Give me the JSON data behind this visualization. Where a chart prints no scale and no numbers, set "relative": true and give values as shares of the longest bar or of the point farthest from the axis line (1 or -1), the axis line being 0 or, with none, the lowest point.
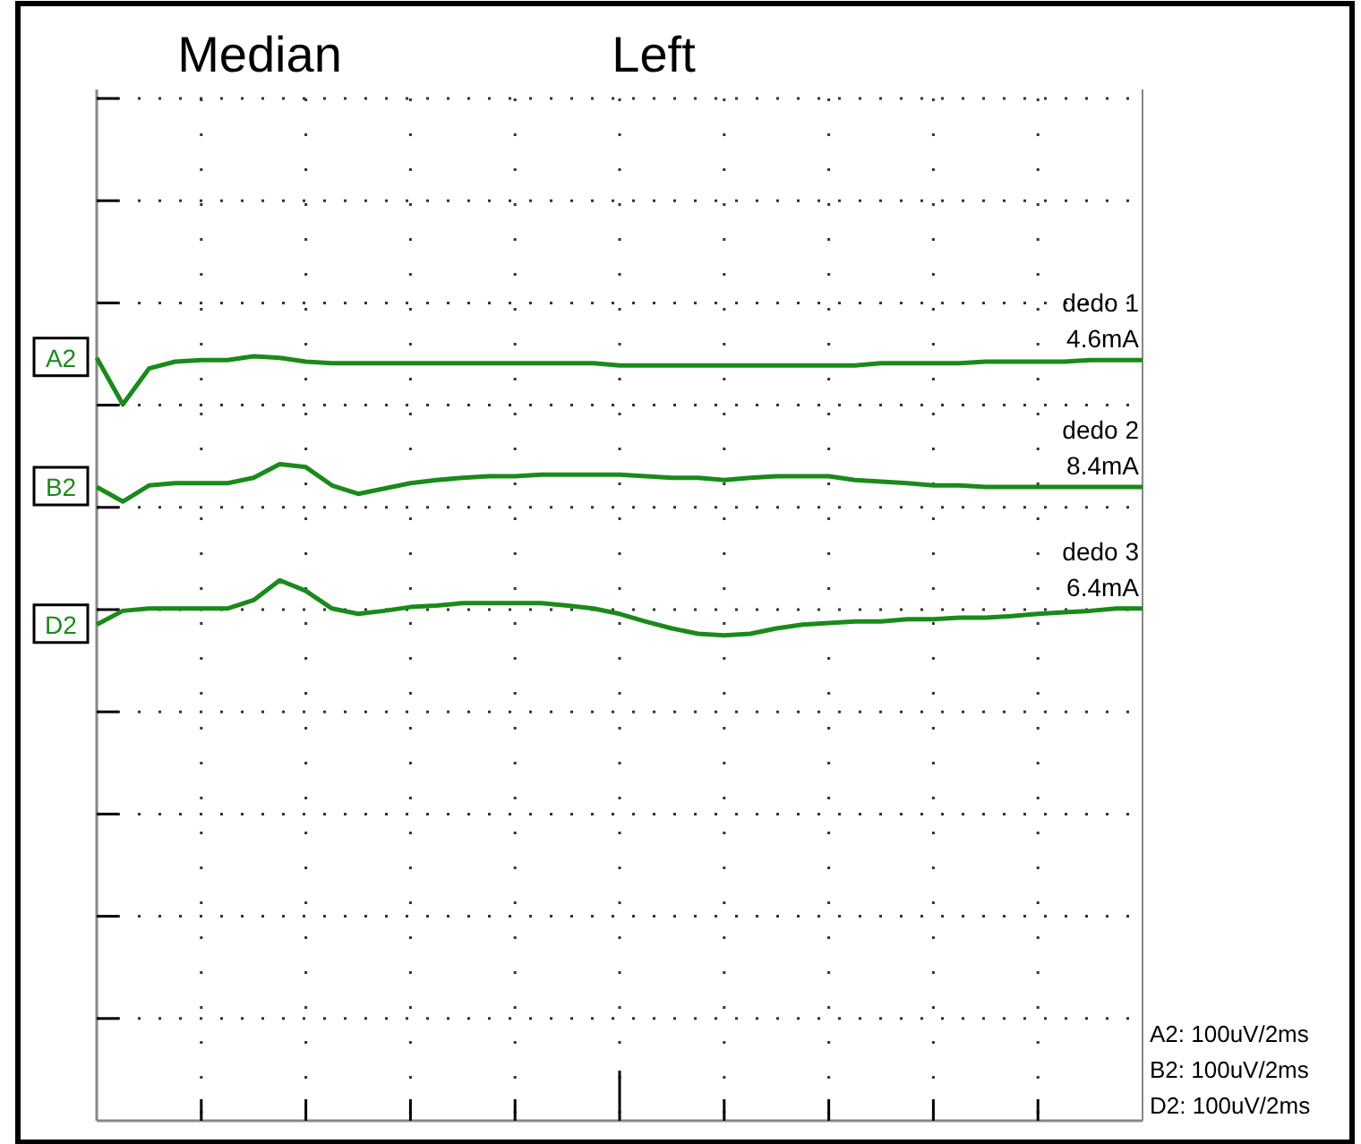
{
  "chart_data": {
    "type": "line",
    "title": "Median",
    "subtitle": "Left",
    "relative": true,
    "grid": true,
    "legend": "left",
    "marker": "none",
    "line_style": "solid",
    "categories": [
      null,
      null,
      null,
      null,
      null,
      null,
      null,
      null,
      null,
      null,
      null,
      null,
      null,
      null,
      null,
      null,
      null,
      null,
      null,
      null,
      null,
      null,
      null,
      null,
      null,
      null,
      null,
      null,
      null,
      null,
      null,
      null,
      null,
      null,
      null,
      null,
      null,
      null,
      null,
      null,
      null
    ],
    "series": [
      {
        "name": "A2",
        "color": "#1a8a1a",
        "values": [
          0.998,
          0.937,
          0.984,
          0.993,
          0.995,
          0.995,
          1,
          0.998,
          0.993,
          0.991,
          0.991,
          0.991,
          0.991,
          0.991,
          0.991,
          0.991,
          0.991,
          0.991,
          0.991,
          0.991,
          0.988,
          0.988,
          0.988,
          0.988,
          0.988,
          0.988,
          0.988,
          0.988,
          0.988,
          0.988,
          0.991,
          0.991,
          0.991,
          0.991,
          0.993,
          0.993,
          0.993,
          0.993,
          0.995,
          0.995,
          0.995
        ]
      },
      {
        "name": "B2",
        "color": "#1a8a1a",
        "values": [
          0.829,
          0.81,
          0.831,
          0.834,
          0.834,
          0.834,
          0.841,
          0.859,
          0.855,
          0.831,
          0.82,
          0.827,
          0.834,
          0.838,
          0.841,
          0.843,
          0.843,
          0.845,
          0.845,
          0.845,
          0.845,
          0.843,
          0.841,
          0.841,
          0.838,
          0.841,
          0.843,
          0.843,
          0.843,
          0.838,
          0.836,
          0.834,
          0.831,
          0.831,
          0.829,
          0.829,
          0.829,
          0.829,
          0.829,
          0.829,
          0.829
        ]
      },
      {
        "name": "D2",
        "color": "#1a8a1a",
        "values": [
          0.649,
          0.667,
          0.67,
          0.67,
          0.67,
          0.67,
          0.681,
          0.707,
          0.693,
          0.67,
          0.663,
          0.667,
          0.672,
          0.674,
          0.677,
          0.677,
          0.677,
          0.677,
          0.674,
          0.67,
          0.663,
          0.653,
          0.644,
          0.637,
          0.635,
          0.637,
          0.644,
          0.649,
          0.651,
          0.653,
          0.653,
          0.656,
          0.656,
          0.658,
          0.658,
          0.66,
          0.663,
          0.665,
          0.667,
          0.67,
          0.67
        ]
      }
    ],
    "annotations": [
      "dedo 1",
      "4.6mA",
      "dedo 2",
      "8.4mA",
      "dedo 3",
      "6.4mA",
      "A2: 100uV/2ms",
      "B2: 100uV/2ms",
      "D2: 100uV/2ms"
    ]
  }
}
